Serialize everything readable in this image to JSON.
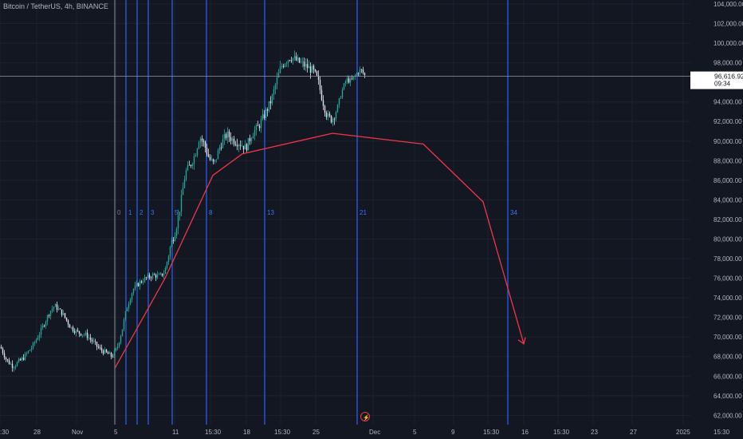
{
  "header": {
    "symbol_title": "Bitcoin / TetherUS, 4h, BINANCE"
  },
  "price_axis": {
    "labels": [
      "104,000.00",
      "102,000.00",
      "100,000.00",
      "98,000.00",
      "94,000.00",
      "92,000.00",
      "90,000.00",
      "88,000.00",
      "86,000.00",
      "84,000.00",
      "82,000.00",
      "80,000.00",
      "78,000.00",
      "76,000.00",
      "74,000.00",
      "72,000.00",
      "70,000.00",
      "68,000.00",
      "66,000.00",
      "64,000.00",
      "62,000.00"
    ],
    "values": [
      104000,
      102000,
      100000,
      98000,
      94000,
      92000,
      90000,
      88000,
      86000,
      84000,
      82000,
      80000,
      78000,
      76000,
      74000,
      72000,
      70000,
      68000,
      66000,
      64000,
      62000
    ]
  },
  "time_axis": {
    "labels": [
      ":30",
      "28",
      "Nov",
      "5",
      "11",
      "15:30",
      "18",
      "15:30",
      "25",
      "Dec",
      "5",
      "9",
      "15:30",
      "16",
      "15:30",
      "23",
      "27",
      "2025",
      "15:30"
    ]
  },
  "last_price": {
    "value": 96616.92,
    "label": "96,616.92",
    "countdown": "09:34"
  },
  "fib_time_zones": {
    "labels": [
      "0",
      "1",
      "2",
      "3",
      "5",
      "8",
      "13",
      "21",
      "34"
    ]
  },
  "projection_path": {
    "values": [
      66800,
      76000,
      86500,
      88700,
      90800,
      89700,
      83800,
      69300
    ]
  },
  "colors": {
    "background": "#131722",
    "grid": "#1e222d",
    "fib_line": "#2962ff",
    "fib_label": "#3179f5",
    "fib_zero_line": "#787b86",
    "projection": "#f23645",
    "candle_up": "#26a69a",
    "candle_down": "#e0e3eb",
    "crosshair": "#9598a1",
    "axis_text": "#b2b5be"
  },
  "icons": {
    "alert": "lightning-icon"
  }
}
